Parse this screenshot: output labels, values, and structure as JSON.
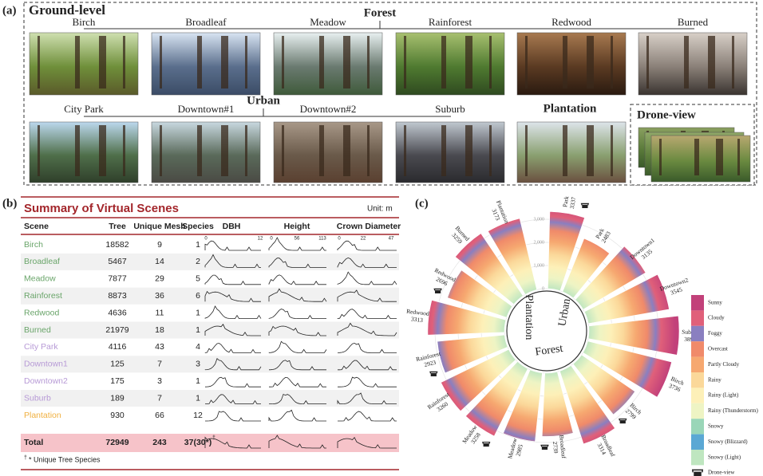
{
  "panel_a": {
    "label": "(a)",
    "title": "Ground-level",
    "forest": {
      "label": "Forest",
      "scenes": [
        "Birch",
        "Broadleaf",
        "Meadow",
        "Rainforest",
        "Redwood",
        "Burned"
      ]
    },
    "urban": {
      "label": "Urban",
      "scenes": [
        "City Park",
        "Downtown#1",
        "Downtown#2",
        "Suburb"
      ]
    },
    "plantation": "Plantation",
    "drone": "Drone-view"
  },
  "panel_b": {
    "label": "(b)",
    "title": "Summary of Virtual Scenes",
    "unit": "Unit: m",
    "headers": [
      "Scene",
      "Tree",
      "Unique Mesh",
      "Species",
      "DBH",
      "Height",
      "Crown Diameter"
    ],
    "axis_labels": [
      [
        "0",
        "12"
      ],
      [
        "0",
        "56",
        "113"
      ],
      [
        "0",
        "22",
        "47"
      ]
    ],
    "rows": [
      [
        "Birch",
        18582,
        9,
        1
      ],
      [
        "Broadleaf",
        5467,
        14,
        2
      ],
      [
        "Meadow",
        7877,
        29,
        5
      ],
      [
        "Rainforest",
        8873,
        36,
        6
      ],
      [
        "Redwood",
        4636,
        11,
        1
      ],
      [
        "Burned",
        21979,
        18,
        1
      ],
      [
        "City Park",
        4116,
        43,
        4
      ],
      [
        "Downtown1",
        125,
        7,
        3
      ],
      [
        "Downtown2",
        175,
        3,
        1
      ],
      [
        "Suburb",
        189,
        7,
        1
      ],
      [
        "Plantation",
        930,
        66,
        12
      ]
    ],
    "total": [
      "Total",
      72949,
      243,
      "37(30*)"
    ],
    "total_mark": "†",
    "footnote_mark": "†",
    "footnote": "* Unique Tree Species"
  },
  "panel_c": {
    "label": "(c)",
    "ticks": [
      0,
      {
        "value": 1000,
        "label": "1,000"
      },
      {
        "value": 2000,
        "label": "2,000"
      },
      {
        "value": 3000,
        "label": "3,000"
      }
    ],
    "groups": [
      "Urban",
      "Plantation",
      "Forest"
    ],
    "bars": [
      {
        "name": "Park",
        "value": 3337,
        "drone": true
      },
      {
        "name": "Park",
        "value": 2483,
        "drone": false
      },
      {
        "name": "Downtown1",
        "value": 3135,
        "drone": false
      },
      {
        "name": "Downtown2",
        "value": 3545,
        "drone": false
      },
      {
        "name": "Suburb",
        "value": 3897,
        "drone": false
      },
      {
        "name": "Birch",
        "value": 3736,
        "drone": false
      },
      {
        "name": "Birch",
        "value": 2799,
        "drone": true
      },
      {
        "name": "Broadleaf",
        "value": 3314,
        "drone": false
      },
      {
        "name": "Broadleaf",
        "value": 2739,
        "drone": true
      },
      {
        "name": "Meadow",
        "value": 2985,
        "drone": false
      },
      {
        "name": "Meadow",
        "value": 3258,
        "drone": true
      },
      {
        "name": "Rainforest",
        "value": 3260,
        "drone": false
      },
      {
        "name": "Rainforest",
        "value": 2923,
        "drone": true
      },
      {
        "name": "Redwood",
        "value": 3313,
        "drone": false
      },
      {
        "name": "Redwood",
        "value": 2696,
        "drone": true
      },
      {
        "name": "Burned",
        "value": 3259,
        "drone": false
      },
      {
        "name": "Plantation",
        "value": 3173,
        "drone": false
      }
    ],
    "legend": [
      {
        "name": "Sunny",
        "color": "#c2417a"
      },
      {
        "name": "Cloudy",
        "color": "#e0607a"
      },
      {
        "name": "Foggy",
        "color": "#8a7fc0"
      },
      {
        "name": "Overcast",
        "color": "#f08a6a"
      },
      {
        "name": "Partly Cloudy",
        "color": "#f6a870"
      },
      {
        "name": "Rainy",
        "color": "#fbd89a"
      },
      {
        "name": "Rainy (Light)",
        "color": "#fdf0b8"
      },
      {
        "name": "Rainy (Thunderstorm)",
        "color": "#eef4c4"
      },
      {
        "name": "Snowy",
        "color": "#9ad6b8"
      },
      {
        "name": "Snowy (Blizzard)",
        "color": "#5ba8d4"
      },
      {
        "name": "Snowy (Light)",
        "color": "#bfe6c0"
      },
      {
        "name": "Drone-view",
        "color": "#222222"
      }
    ]
  }
}
